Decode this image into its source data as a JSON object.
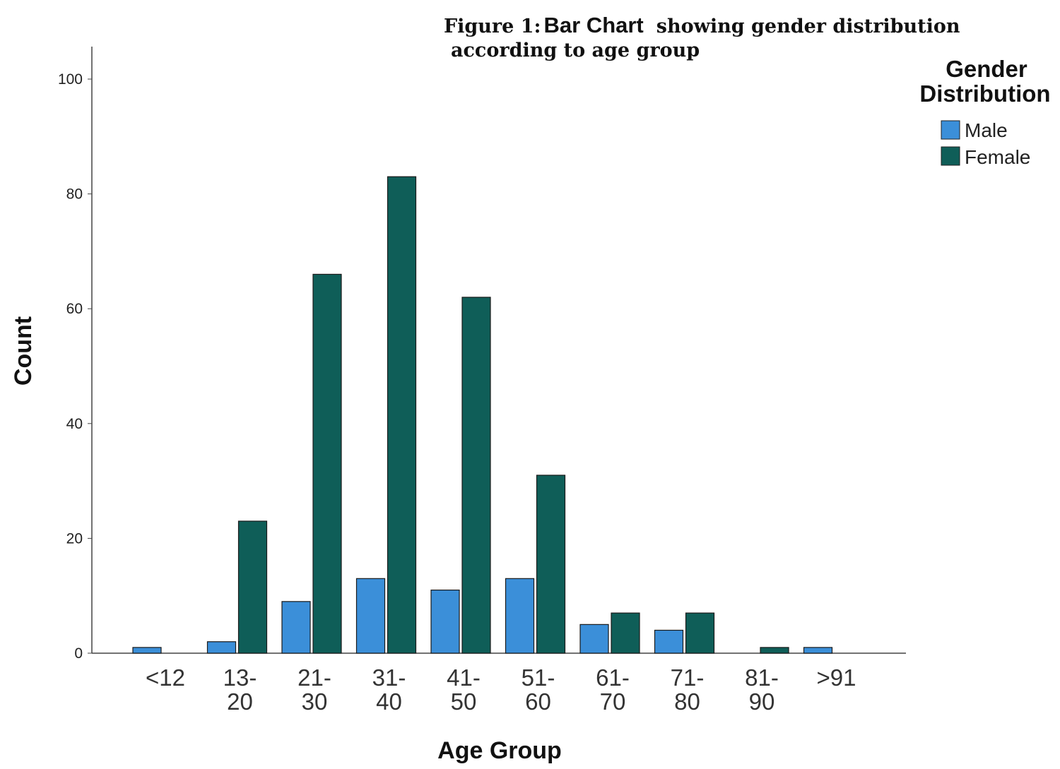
{
  "figure": {
    "title_prefix": "Figure 1:",
    "title_mid": "Bar Chart",
    "title_rest": "showing gender distribution",
    "title_line2": "according to age group"
  },
  "legend": {
    "title_line1": "Gender",
    "title_line2": "Distribution"
  },
  "colors": {
    "male": "#3b8fd9",
    "female": "#0f5e58",
    "axis": "#444444"
  },
  "chart_data": {
    "type": "bar",
    "xlabel": "Age Group",
    "ylabel": "Count",
    "ylim": [
      0,
      100
    ],
    "yticks": [
      0,
      20,
      40,
      60,
      80,
      100
    ],
    "grid": false,
    "legend_position": "top-right",
    "categories": [
      [
        "<12"
      ],
      [
        "13-",
        "20"
      ],
      [
        "21-",
        "30"
      ],
      [
        "31-",
        "40"
      ],
      [
        "41-",
        "50"
      ],
      [
        "51-",
        "60"
      ],
      [
        "61-",
        "70"
      ],
      [
        "71-",
        "80"
      ],
      [
        "81-",
        "90"
      ],
      [
        ">91"
      ]
    ],
    "series": [
      {
        "name": "Male",
        "values": [
          1,
          2,
          9,
          13,
          11,
          13,
          5,
          4,
          0,
          1
        ]
      },
      {
        "name": "Female",
        "values": [
          0,
          23,
          66,
          83,
          62,
          31,
          7,
          7,
          1,
          0
        ]
      }
    ]
  }
}
